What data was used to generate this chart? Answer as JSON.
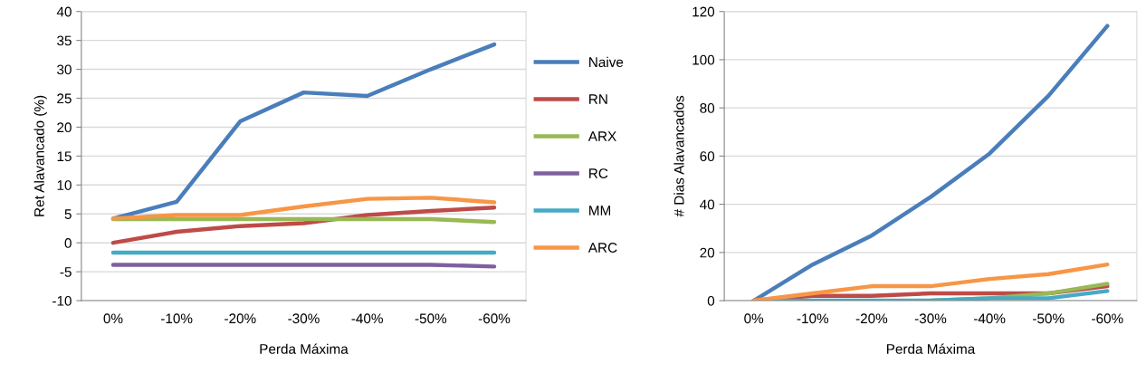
{
  "chart_data": [
    {
      "type": "line",
      "xlabel": "Perda Máxima",
      "ylabel": "Ret Alavancado (%)",
      "categories": [
        "0%",
        "-10%",
        "-20%",
        "-30%",
        "-40%",
        "-50%",
        "-60%"
      ],
      "ylim": [
        -10,
        40
      ],
      "yticks": [
        -10,
        -5,
        0,
        5,
        10,
        15,
        20,
        25,
        30,
        35,
        40
      ],
      "grid": "y",
      "legend": "right",
      "marker": "none",
      "line_style": "solid",
      "series": [
        {
          "name": "Naive",
          "color": "#4a7ebb",
          "values": [
            4.2,
            7.1,
            21,
            26,
            25.4,
            30,
            34.3
          ]
        },
        {
          "name": "RN",
          "color": "#be4b48",
          "values": [
            0,
            1.9,
            2.9,
            3.4,
            4.8,
            5.5,
            6.1
          ]
        },
        {
          "name": "ARX",
          "color": "#98b954",
          "values": [
            4.1,
            4.1,
            4.1,
            4.1,
            4.1,
            4.1,
            3.6
          ]
        },
        {
          "name": "RC",
          "color": "#7d60a0",
          "values": [
            -3.8,
            -3.8,
            -3.8,
            -3.8,
            -3.8,
            -3.8,
            -4.1
          ]
        },
        {
          "name": "MM",
          "color": "#46aac5",
          "values": [
            -1.7,
            -1.7,
            -1.7,
            -1.7,
            -1.7,
            -1.7,
            -1.7
          ]
        },
        {
          "name": "ARC",
          "color": "#f79646",
          "values": [
            4.2,
            4.8,
            4.8,
            6.3,
            7.6,
            7.8,
            7.0
          ]
        }
      ]
    },
    {
      "type": "line",
      "xlabel": "Perda Máxima",
      "ylabel": "# Dias Alavancados",
      "categories": [
        "0%",
        "-10%",
        "-20%",
        "-30%",
        "-40%",
        "-50%",
        "-60%"
      ],
      "ylim": [
        0,
        120
      ],
      "yticks": [
        0,
        20,
        40,
        60,
        80,
        100,
        120
      ],
      "grid": "y",
      "marker": "none",
      "line_style": "solid",
      "series": [
        {
          "color": "#4a7ebb",
          "values": [
            0,
            15,
            27,
            43,
            61,
            85,
            114
          ]
        },
        {
          "color": "#be4b48",
          "values": [
            0,
            2,
            2,
            3,
            3,
            3,
            6
          ]
        },
        {
          "color": "#98b954",
          "values": [
            null,
            null,
            null,
            0,
            1,
            3,
            7
          ]
        },
        {
          "color": "#7d60a0",
          "values": [
            null,
            null,
            null,
            null,
            null,
            null,
            null
          ]
        },
        {
          "color": "#46aac5",
          "values": [
            0,
            0,
            0,
            0,
            1,
            1,
            4
          ]
        },
        {
          "color": "#f79646",
          "values": [
            0,
            3,
            6,
            6,
            9,
            11,
            15
          ]
        }
      ]
    }
  ]
}
